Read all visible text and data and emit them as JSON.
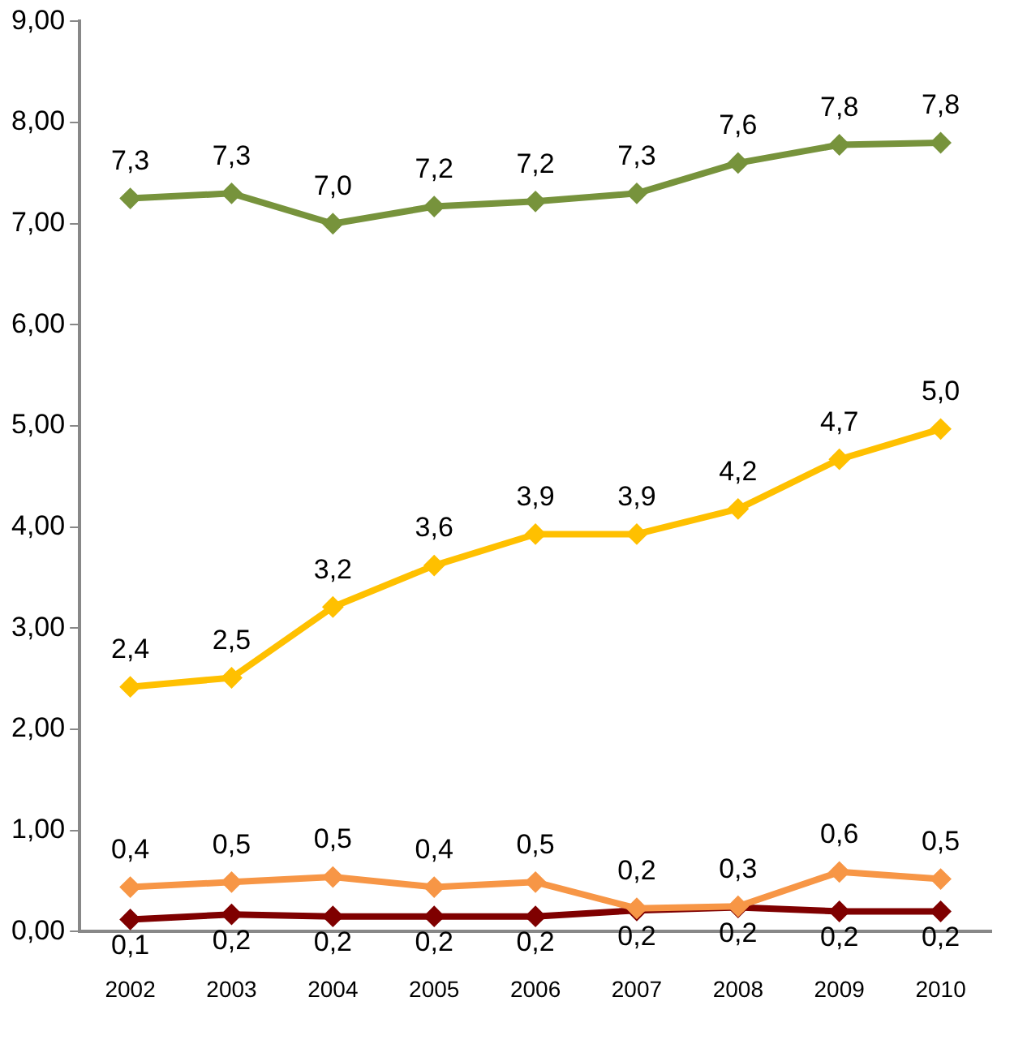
{
  "chart_data": {
    "type": "line",
    "categories": [
      "2002",
      "2003",
      "2004",
      "2005",
      "2006",
      "2007",
      "2008",
      "2009",
      "2010"
    ],
    "ylim": [
      0,
      9
    ],
    "yticks": [
      {
        "value": 0,
        "label": "0,00"
      },
      {
        "value": 1,
        "label": "1,00"
      },
      {
        "value": 2,
        "label": "2,00"
      },
      {
        "value": 3,
        "label": "3,00"
      },
      {
        "value": 4,
        "label": "4,00"
      },
      {
        "value": 5,
        "label": "5,00"
      },
      {
        "value": 6,
        "label": "6,00"
      },
      {
        "value": 7,
        "label": "7,00"
      },
      {
        "value": 8,
        "label": "8,00"
      },
      {
        "value": 9,
        "label": "9,00"
      }
    ],
    "grid": false,
    "legend": false,
    "marker": "diamond",
    "line_style": "solid",
    "series": [
      {
        "color": "#77933c",
        "values": [
          7.25,
          7.3,
          7.0,
          7.17,
          7.22,
          7.3,
          7.6,
          7.78,
          7.8
        ],
        "value_labels": [
          "7,3",
          "7,3",
          "7,0",
          "7,2",
          "7,2",
          "7,3",
          "7,6",
          "7,8",
          "7,8"
        ]
      },
      {
        "color": "#ffc000",
        "values": [
          2.42,
          2.51,
          3.21,
          3.62,
          3.93,
          3.93,
          4.18,
          4.67,
          4.97
        ],
        "value_labels": [
          "2,4",
          "2,5",
          "3,2",
          "3,6",
          "3,9",
          "3,9",
          "4,2",
          "4,7",
          "5,0"
        ]
      },
      {
        "color": "#f79646",
        "values": [
          0.44,
          0.49,
          0.54,
          0.44,
          0.49,
          0.23,
          0.25,
          0.59,
          0.52
        ],
        "value_labels": [
          "0,4",
          "0,5",
          "0,5",
          "0,4",
          "0,5",
          "0,2",
          "0,3",
          "0,6",
          "0,5"
        ]
      },
      {
        "color": "#7f0000",
        "values": [
          0.12,
          0.17,
          0.15,
          0.15,
          0.15,
          0.21,
          0.24,
          0.2,
          0.2
        ],
        "value_labels": [
          "0,1",
          "0,2",
          "0,2",
          "0,2",
          "0,2",
          "0,2",
          "0,2",
          "0,2",
          "0,2"
        ]
      }
    ]
  }
}
